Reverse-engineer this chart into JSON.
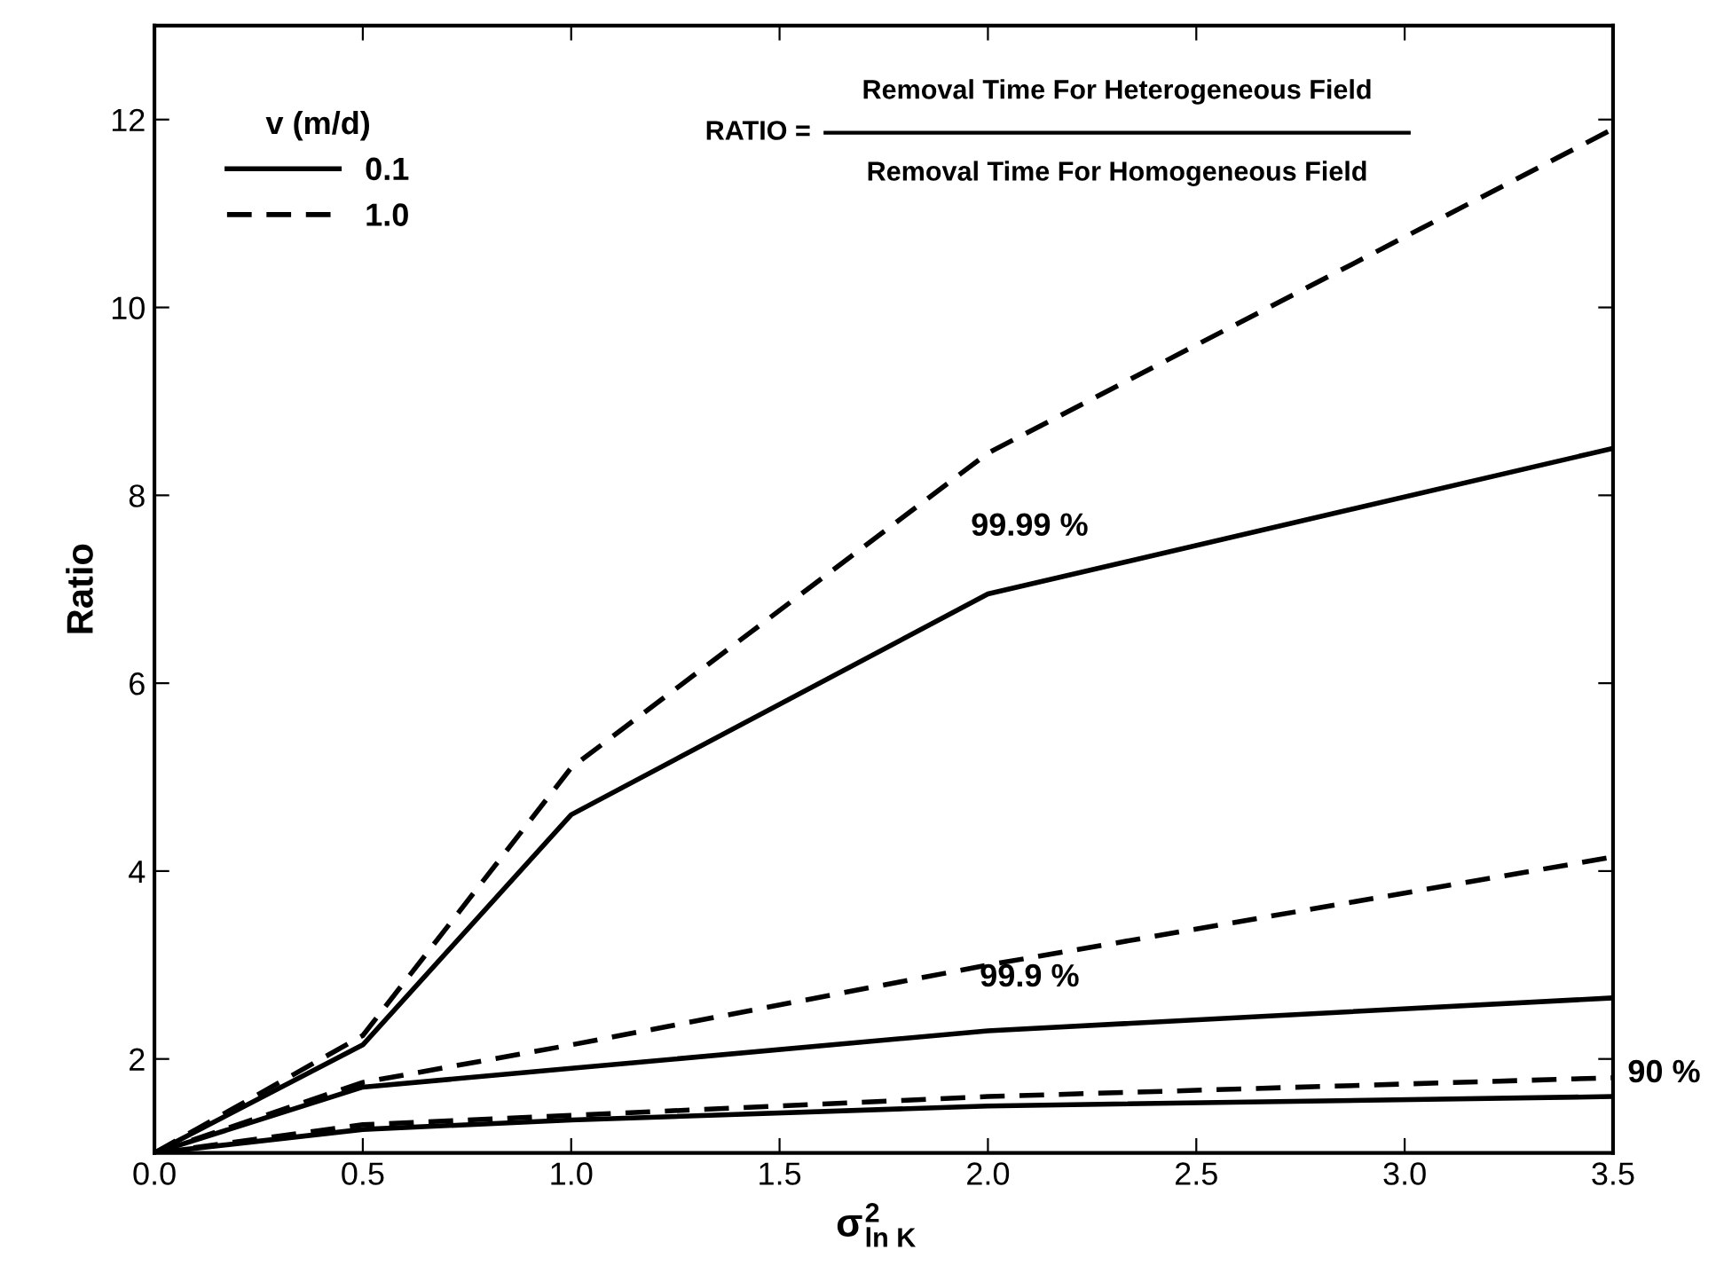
{
  "chart_data": {
    "type": "line",
    "xlabel": "σ$^{2}$$_{ln K}$",
    "ylabel": "Ratio",
    "legend_title": "v (m/d)",
    "legend": "top left",
    "grid": false,
    "marker": "none",
    "x": [
      0,
      0.5,
      1.0,
      2.0,
      3.5
    ],
    "xlim": [
      0,
      3.5
    ],
    "xticks": [
      {
        "value": 0,
        "label": "0.0"
      },
      {
        "value": 0.5,
        "label": "0.5"
      },
      {
        "value": 1,
        "label": "1.0"
      },
      {
        "value": 1.5,
        "label": "1.5"
      },
      {
        "value": 2,
        "label": "2.0"
      },
      {
        "value": 2.5,
        "label": "2.5"
      },
      {
        "value": 3,
        "label": "3.0"
      },
      {
        "value": 3.5,
        "label": "3.5"
      }
    ],
    "ylim": [
      1,
      13
    ],
    "yticks": [
      2,
      4,
      6,
      8,
      10,
      12
    ],
    "series": [
      {
        "name": "0.1",
        "color": "#000000",
        "line_style": "solid",
        "values": [
          1,
          2.15,
          4.6,
          6.95,
          8.5
        ]
      },
      {
        "name": "1.0",
        "color": "#000000",
        "line_style": "dashed",
        "values": [
          1,
          2.25,
          5.1,
          8.45,
          11.9
        ]
      },
      {
        "color": "#000000",
        "line_style": "solid",
        "values": [
          1,
          1.7,
          1.9,
          2.3,
          2.65
        ]
      },
      {
        "color": "#000000",
        "line_style": "dashed",
        "values": [
          1,
          1.75,
          2.15,
          3.0,
          4.15
        ]
      },
      {
        "color": "#000000",
        "line_style": "solid",
        "values": [
          1,
          1.25,
          1.35,
          1.5,
          1.6
        ]
      },
      {
        "color": "#000000",
        "line_style": "dashed",
        "values": [
          1,
          1.3,
          1.4,
          1.6,
          1.8
        ]
      }
    ],
    "annotations": [
      "99.99 %",
      "99.9 %",
      "90 %",
      "RATIO =",
      "Removal Time For Heterogeneous Field",
      "Removal Time For Homogeneous Field"
    ]
  }
}
